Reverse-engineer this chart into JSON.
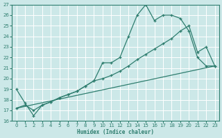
{
  "xlabel": "Humidex (Indice chaleur)",
  "xlim": [
    -0.5,
    23.5
  ],
  "ylim": [
    16,
    27
  ],
  "xticks": [
    0,
    1,
    2,
    3,
    4,
    5,
    6,
    7,
    8,
    9,
    10,
    11,
    12,
    13,
    14,
    15,
    16,
    17,
    18,
    19,
    20,
    21,
    22,
    23
  ],
  "yticks": [
    16,
    17,
    18,
    19,
    20,
    21,
    22,
    23,
    24,
    25,
    26,
    27
  ],
  "bg_color": "#cce8e8",
  "grid_color": "#b0d8d8",
  "line_color": "#2e7d6e",
  "line1_x": [
    0,
    1,
    2,
    3,
    4,
    5,
    6,
    7,
    8,
    9,
    10,
    11,
    12,
    13,
    14,
    15,
    16,
    17,
    18,
    19,
    20,
    21,
    22,
    23
  ],
  "line1_y": [
    19.0,
    17.7,
    16.5,
    17.5,
    17.8,
    18.2,
    18.5,
    18.8,
    19.3,
    19.8,
    21.5,
    21.5,
    22.0,
    24.0,
    26.0,
    27.0,
    25.5,
    26.0,
    26.0,
    25.7,
    24.5,
    22.0,
    21.2,
    21.2
  ],
  "line2_x": [
    0,
    1,
    2,
    3,
    4,
    5,
    6,
    7,
    8,
    9,
    10,
    11,
    12,
    13,
    14,
    15,
    16,
    17,
    18,
    19,
    20,
    21,
    22,
    23
  ],
  "line2_y": [
    17.2,
    17.5,
    17.0,
    17.5,
    17.8,
    18.2,
    18.5,
    18.8,
    19.3,
    19.8,
    20.0,
    20.3,
    20.7,
    21.2,
    21.8,
    22.3,
    22.8,
    23.3,
    23.8,
    24.5,
    25.0,
    22.5,
    23.0,
    21.2
  ],
  "line3_x": [
    0,
    23
  ],
  "line3_y": [
    17.2,
    21.2
  ]
}
